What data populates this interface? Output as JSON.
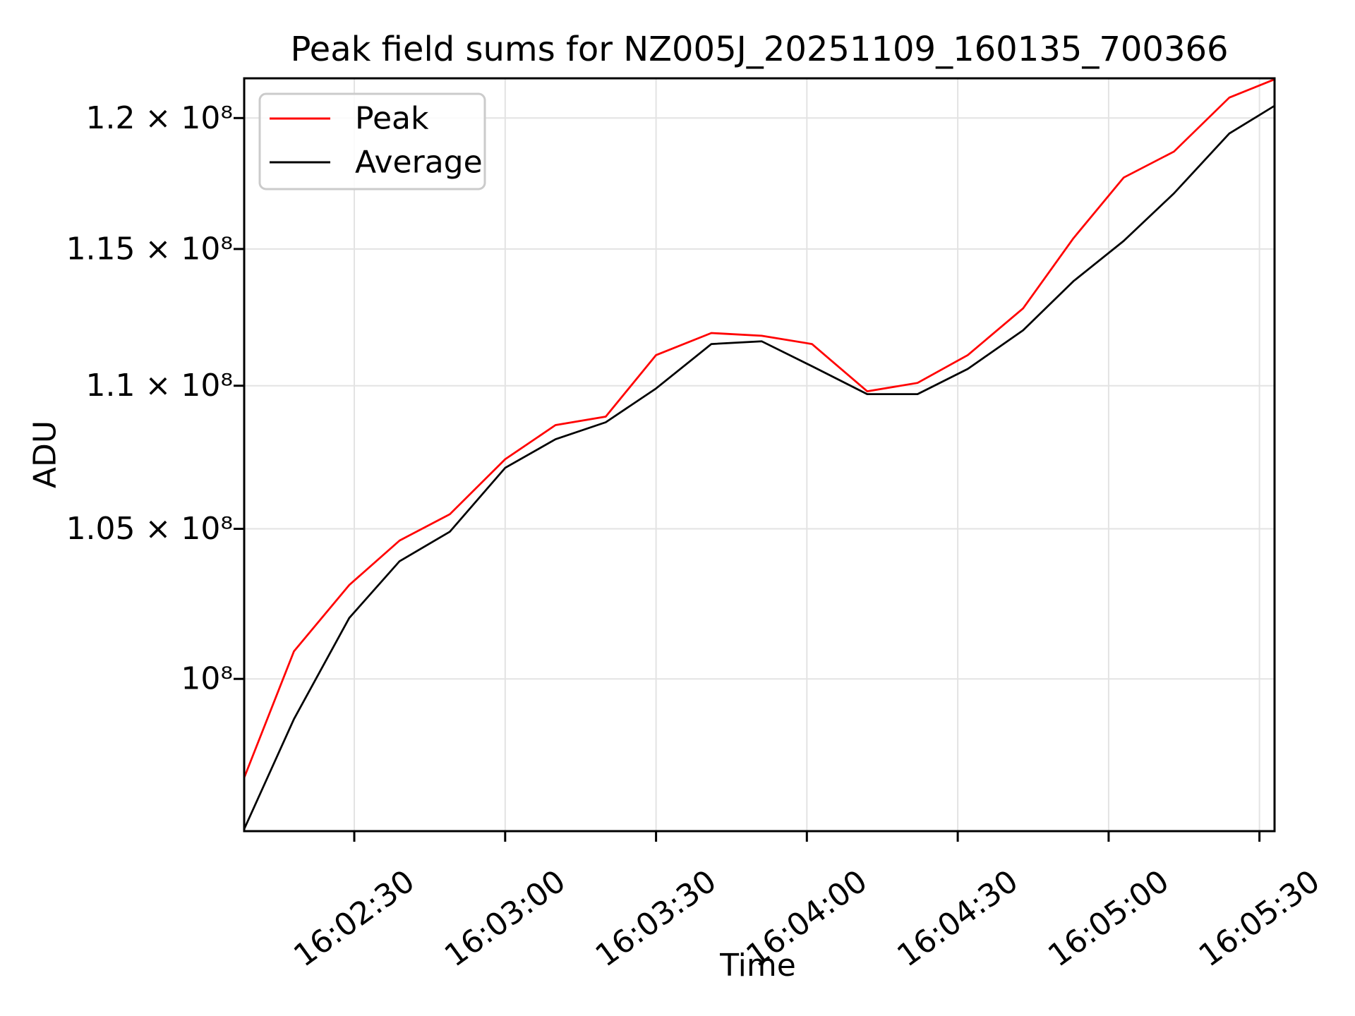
{
  "title": "Peak field sums for NZ005J_20251109_160135_700366",
  "xlabel": "Time",
  "ylabel": "ADU",
  "colors": {
    "peak_line": "#ff0000",
    "average_line": "#000000",
    "grid": "#e3e3e3",
    "spine": "#000000",
    "background": "#ffffff",
    "legend_border": "#cbcbcb"
  },
  "legend": {
    "position": "upper-left",
    "entries": [
      "Peak",
      "Average"
    ]
  },
  "chart_data": {
    "type": "line",
    "title": "Peak field sums for NZ005J_20251109_160135_700366",
    "xlabel": "Time",
    "ylabel": "ADU",
    "y_scale": "log",
    "grid": true,
    "legend_position": "upper-left",
    "xlim_times": [
      "16:02:08.1",
      "16:05:33.0"
    ],
    "ylim": [
      95170000,
      121560000
    ],
    "x_tick_labels": [
      "16:02:30",
      "16:03:00",
      "16:03:30",
      "16:04:00",
      "16:04:30",
      "16:05:00",
      "16:05:30"
    ],
    "y_ticks": [
      100000000,
      105000000,
      110000000,
      115000000,
      120000000
    ],
    "y_tick_labels": [
      "10⁸",
      "1.05 × 10⁸",
      "1.1 × 10⁸",
      "1.15 × 10⁸",
      "1.2 × 10⁸"
    ],
    "x_times": [
      "16:02:08",
      "16:02:18",
      "16:02:29",
      "16:02:39",
      "16:02:49",
      "16:03:00",
      "16:03:10",
      "16:03:20",
      "16:03:30",
      "16:03:41",
      "16:03:51",
      "16:04:01",
      "16:04:12",
      "16:04:22",
      "16:04:32",
      "16:04:43",
      "16:04:53",
      "16:05:03",
      "16:05:13",
      "16:05:24",
      "16:05:34"
    ],
    "series": [
      {
        "name": "Peak",
        "color": "#ff0000",
        "values": [
          96800000,
          100900000,
          103100000,
          104600000,
          105500000,
          107400000,
          108600000,
          108900000,
          111100000,
          111900000,
          111800000,
          111500000,
          109800000,
          110100000,
          111100000,
          112800000,
          115400000,
          117700000,
          118700000,
          120800000,
          121600000
        ]
      },
      {
        "name": "Average",
        "color": "#000000",
        "values": [
          95200000,
          98700000,
          102000000,
          103900000,
          104900000,
          107100000,
          108100000,
          108700000,
          109900000,
          111500000,
          111600000,
          110700000,
          109700000,
          109700000,
          110600000,
          112000000,
          113800000,
          115300000,
          117100000,
          119400000,
          120600000
        ]
      }
    ]
  }
}
